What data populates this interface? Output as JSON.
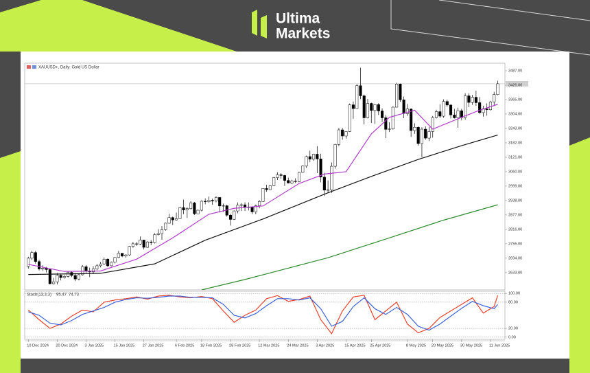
{
  "brand": {
    "line1": "Ultima",
    "line2": "Markets"
  },
  "chart_data": [
    {
      "type": "candlestick",
      "title": "XAUUSD+, Daily: Gold US Dollar",
      "up_color": "#ffffff",
      "down_color": "#000000",
      "open": [
        2660,
        2694,
        2718,
        2680,
        2648,
        2652,
        2646,
        2586,
        2594,
        2622,
        2612,
        2617,
        2634,
        2621,
        2606,
        2624,
        2658,
        2640,
        2636,
        2649,
        2662,
        2670,
        2690,
        2662,
        2677,
        2697,
        2715,
        2703,
        2708,
        2744,
        2755,
        2754,
        2771,
        2740,
        2763,
        2760,
        2794,
        2798,
        2815,
        2842,
        2866,
        2856,
        2861,
        2908,
        2898,
        2904,
        2928,
        2882,
        2897,
        2935,
        2933,
        2939,
        2936,
        2951,
        2915,
        2916,
        2876,
        2858,
        2894,
        2918,
        2920,
        2910,
        2910,
        2890,
        2916,
        2934,
        2989,
        2984,
        3001,
        3035,
        3047,
        3044,
        3023,
        3012,
        3020,
        3018,
        3057,
        3084,
        3124,
        3113,
        3134,
        3114,
        3037,
        2982,
        2983,
        3083,
        3175,
        3237,
        3211,
        3230,
        3343,
        3327,
        3424,
        3381,
        3288,
        3349,
        3319,
        3344,
        3317,
        3288,
        3239,
        3241,
        3333,
        3431,
        3364,
        3306,
        3325,
        3234,
        3248,
        3179,
        3240,
        3202,
        3230,
        3289,
        3314,
        3295,
        3357,
        3342,
        3300,
        3288,
        3318,
        3289,
        3381,
        3353,
        3375,
        3352,
        3310,
        3326,
        3322,
        3355,
        3386
      ],
      "high": [
        2700,
        2726,
        2725,
        2687,
        2664,
        2657,
        2651,
        2611,
        2632,
        2625,
        2623,
        2638,
        2640,
        2632,
        2630,
        2665,
        2665,
        2654,
        2660,
        2670,
        2678,
        2697,
        2694,
        2680,
        2700,
        2725,
        2716,
        2710,
        2746,
        2763,
        2763,
        2786,
        2772,
        2766,
        2771,
        2800,
        2817,
        2830,
        2845,
        2882,
        2870,
        2887,
        2911,
        2942,
        2910,
        2935,
        2932,
        2900,
        2939,
        2947,
        2955,
        2946,
        2956,
        2952,
        2925,
        2920,
        2882,
        2896,
        2930,
        2927,
        2930,
        2930,
        2912,
        2921,
        2940,
        2990,
        3005,
        3004,
        3038,
        3057,
        3054,
        3047,
        3035,
        3026,
        3032,
        3060,
        3087,
        3128,
        3149,
        3136,
        3168,
        3136,
        3055,
        3023,
        3099,
        3178,
        3245,
        3245,
        3232,
        3348,
        3357,
        3430,
        3500,
        3386,
        3368,
        3352,
        3347,
        3350,
        3328,
        3300,
        3269,
        3336,
        3436,
        3433,
        3378,
        3346,
        3328,
        3265,
        3252,
        3248,
        3252,
        3250,
        3296,
        3322,
        3345,
        3366,
        3365,
        3345,
        3326,
        3331,
        3326,
        3392,
        3392,
        3385,
        3403,
        3376,
        3339,
        3349,
        3360,
        3398,
        3445
      ],
      "low": [
        2650,
        2686,
        2671,
        2642,
        2640,
        2634,
        2583,
        2583,
        2583,
        2600,
        2608,
        2612,
        2614,
        2597,
        2600,
        2620,
        2633,
        2614,
        2627,
        2643,
        2655,
        2665,
        2656,
        2660,
        2672,
        2694,
        2698,
        2696,
        2704,
        2738,
        2746,
        2750,
        2731,
        2738,
        2749,
        2756,
        2790,
        2772,
        2810,
        2840,
        2834,
        2853,
        2860,
        2880,
        2864,
        2900,
        2877,
        2880,
        2892,
        2922,
        2928,
        2920,
        2930,
        2888,
        2890,
        2870,
        2832,
        2856,
        2884,
        2894,
        2894,
        2896,
        2880,
        2880,
        2905,
        2932,
        2975,
        2982,
        2998,
        3025,
        3030,
        2999,
        3010,
        3008,
        3012,
        3015,
        3055,
        3076,
        3100,
        3106,
        3054,
        3015,
        2957,
        2970,
        2970,
        3073,
        3168,
        3195,
        3200,
        3228,
        3284,
        3325,
        3367,
        3260,
        3285,
        3266,
        3262,
        3300,
        3270,
        3202,
        3228,
        3238,
        3332,
        3355,
        3286,
        3296,
        3207,
        3220,
        3170,
        3121,
        3195,
        3190,
        3204,
        3285,
        3287,
        3288,
        3335,
        3285,
        3285,
        3246,
        3277,
        3280,
        3333,
        3343,
        3338,
        3305,
        3293,
        3297,
        3319,
        3340,
        3383
      ],
      "close": [
        2694,
        2718,
        2680,
        2648,
        2652,
        2646,
        2586,
        2594,
        2622,
        2612,
        2617,
        2634,
        2621,
        2606,
        2624,
        2658,
        2640,
        2636,
        2649,
        2662,
        2670,
        2690,
        2662,
        2677,
        2697,
        2715,
        2703,
        2708,
        2744,
        2755,
        2754,
        2771,
        2740,
        2763,
        2760,
        2794,
        2798,
        2815,
        2842,
        2866,
        2856,
        2861,
        2908,
        2898,
        2904,
        2928,
        2882,
        2897,
        2935,
        2933,
        2939,
        2936,
        2951,
        2915,
        2916,
        2876,
        2858,
        2894,
        2918,
        2920,
        2910,
        2910,
        2890,
        2916,
        2934,
        2989,
        2984,
        3001,
        3035,
        3047,
        3044,
        3023,
        3012,
        3020,
        3018,
        3057,
        3084,
        3124,
        3113,
        3134,
        3114,
        3037,
        2982,
        2983,
        3083,
        3175,
        3237,
        3211,
        3230,
        3343,
        3327,
        3424,
        3381,
        3288,
        3349,
        3319,
        3344,
        3317,
        3288,
        3239,
        3241,
        3333,
        3431,
        3364,
        3306,
        3325,
        3234,
        3248,
        3179,
        3240,
        3202,
        3230,
        3289,
        3314,
        3295,
        3357,
        3342,
        3300,
        3288,
        3318,
        3289,
        3381,
        3353,
        3375,
        3352,
        3310,
        3326,
        3322,
        3355,
        3386,
        3432
      ],
      "series": [
        {
          "color": "#b03cc8",
          "x": [
            0,
            10,
            20,
            30,
            40,
            50,
            57,
            65,
            75,
            82,
            88,
            95,
            100,
            107,
            112,
            120,
            125,
            130
          ],
          "values": [
            2668,
            2638,
            2640,
            2690,
            2780,
            2880,
            2905,
            2915,
            3010,
            3050,
            3060,
            3220,
            3290,
            3320,
            3240,
            3290,
            3320,
            3345
          ]
        },
        {
          "color": "#111111",
          "x": [
            0,
            20,
            35,
            49,
            65,
            82,
            95,
            108,
            120,
            130
          ],
          "values": [
            2625,
            2630,
            2670,
            2770,
            2860,
            2965,
            3040,
            3112,
            3170,
            3215
          ]
        },
        {
          "color": "#2e8b2e",
          "x": [
            48,
            60,
            83,
            100,
            115,
            130
          ],
          "values": [
            2560,
            2604,
            2696,
            2780,
            2855,
            2920
          ]
        }
      ],
      "xlim": [
        -1,
        132
      ],
      "ylim": [
        2560,
        3519
      ],
      "yticks": [
        {
          "value": 3487,
          "label": "3487.00"
        },
        {
          "value": 3426,
          "label": "3426.00"
        },
        {
          "value": 3365,
          "label": "3365.00"
        },
        {
          "value": 3304,
          "label": "3304.00"
        },
        {
          "value": 3243,
          "label": "3243.00"
        },
        {
          "value": 3182,
          "label": "3182.00"
        },
        {
          "value": 3121,
          "label": "3121.00"
        },
        {
          "value": 3060,
          "label": "3060.00"
        },
        {
          "value": 2999,
          "label": "2999.00"
        },
        {
          "value": 2938,
          "label": "2938.00"
        },
        {
          "value": 2877,
          "label": "2877.00"
        },
        {
          "value": 2816,
          "label": "2816.00"
        },
        {
          "value": 2755,
          "label": "2755.00"
        },
        {
          "value": 2694,
          "label": "2694.00"
        },
        {
          "value": 2633,
          "label": "2633.00"
        }
      ],
      "xticks": [
        {
          "value": 0,
          "label": "10 Dec 2024"
        },
        {
          "value": 8,
          "label": "20 Dec 2024"
        },
        {
          "value": 16,
          "label": "3 Jan 2025"
        },
        {
          "value": 24,
          "label": "15 Jan 2025"
        },
        {
          "value": 32,
          "label": "27 Jan 2025"
        },
        {
          "value": 41,
          "label": "6 Feb 2025"
        },
        {
          "value": 48,
          "label": "18 Feb 2025"
        },
        {
          "value": 56,
          "label": "28 Feb 2025"
        },
        {
          "value": 64,
          "label": "12 Mar 2025"
        },
        {
          "value": 72,
          "label": "24 Mar 2025"
        },
        {
          "value": 80,
          "label": "3 Apr 2025"
        },
        {
          "value": 88,
          "label": "15 Apr 2025"
        },
        {
          "value": 95,
          "label": "25 Apr 2025"
        },
        {
          "value": 105,
          "label": "8 May 2025"
        },
        {
          "value": 112,
          "label": "20 May 2025"
        },
        {
          "value": 120,
          "label": "30 May 2025"
        },
        {
          "value": 128,
          "label": "11 Jun 2025"
        }
      ],
      "grid": false
    },
    {
      "type": "line",
      "title": "Stoch(13,3,3)",
      "series": [
        {
          "color": "#e8412c",
          "x": [
            0,
            3,
            6,
            9,
            12,
            15,
            18,
            21,
            24,
            27,
            30,
            33,
            36,
            39,
            42,
            45,
            48,
            51,
            54,
            57,
            60,
            63,
            66,
            69,
            72,
            75,
            78,
            81,
            84,
            87,
            90,
            93,
            96,
            99,
            102,
            105,
            108,
            111,
            114,
            117,
            120,
            123,
            126,
            129,
            130
          ],
          "values": [
            62,
            40,
            20,
            30,
            48,
            62,
            58,
            80,
            85,
            88,
            92,
            87,
            94,
            96,
            92,
            90,
            93,
            88,
            60,
            34,
            50,
            62,
            88,
            95,
            82,
            86,
            94,
            40,
            8,
            60,
            92,
            96,
            40,
            60,
            80,
            30,
            10,
            20,
            45,
            60,
            75,
            90,
            55,
            70,
            95.47
          ]
        },
        {
          "color": "#3a62d8",
          "x": [
            0,
            3,
            6,
            9,
            12,
            15,
            18,
            21,
            24,
            27,
            30,
            33,
            36,
            39,
            42,
            45,
            48,
            51,
            54,
            57,
            60,
            63,
            66,
            69,
            72,
            75,
            78,
            81,
            84,
            87,
            90,
            93,
            96,
            99,
            102,
            105,
            108,
            111,
            114,
            117,
            120,
            123,
            126,
            129,
            130
          ],
          "values": [
            58,
            50,
            32,
            28,
            38,
            52,
            60,
            68,
            80,
            86,
            90,
            89,
            91,
            94,
            94,
            91,
            91,
            90,
            75,
            50,
            44,
            54,
            72,
            88,
            88,
            85,
            90,
            65,
            25,
            36,
            70,
            90,
            65,
            52,
            68,
            52,
            25,
            16,
            30,
            48,
            66,
            82,
            72,
            65,
            74.73
          ]
        }
      ],
      "xlim": [
        -1,
        132
      ],
      "ylim": [
        -5,
        105
      ],
      "yticks": [
        {
          "value": 100,
          "label": "100.00"
        },
        {
          "value": 80,
          "label": "80.00"
        },
        {
          "value": 20,
          "label": "20.00"
        },
        {
          "value": 0,
          "label": "0.00"
        }
      ],
      "grid": true
    }
  ]
}
